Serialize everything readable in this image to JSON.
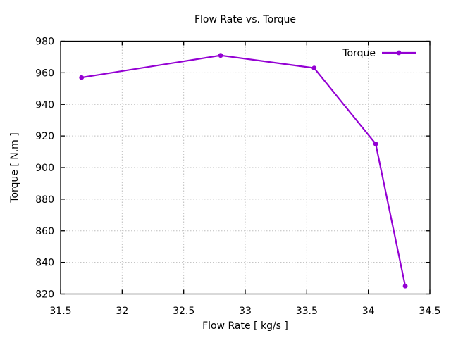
{
  "chart_data": {
    "type": "line",
    "title": "Flow Rate vs. Torque",
    "xlabel": "Flow Rate [ kg/s ]",
    "ylabel": "Torque [ N.m ]",
    "xlim": [
      31.5,
      34.5
    ],
    "ylim": [
      820,
      980
    ],
    "xticks": [
      31.5,
      32,
      32.5,
      33,
      33.5,
      34,
      34.5
    ],
    "yticks": [
      820,
      840,
      860,
      880,
      900,
      920,
      940,
      960,
      980
    ],
    "xtick_labels": [
      "31.5",
      "32",
      "32.5",
      "33",
      "33.5",
      "34",
      "34.5"
    ],
    "ytick_labels": [
      "820",
      "840",
      "860",
      "880",
      "900",
      "920",
      "940",
      "960",
      "980"
    ],
    "grid": "dotted",
    "legend_position": "top-right-inside",
    "series": [
      {
        "name": "Torque",
        "color": "#9400d3",
        "marker": "circle",
        "x": [
          31.67,
          32.8,
          33.56,
          34.06,
          34.3
        ],
        "y": [
          957,
          971,
          963,
          915,
          825
        ]
      }
    ],
    "colors": {
      "series": "#9400d3",
      "grid": "#bdbdbd",
      "axis": "#000000",
      "background": "#ffffff"
    }
  }
}
